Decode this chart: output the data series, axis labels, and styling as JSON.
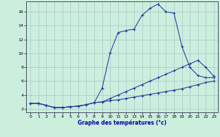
{
  "xlabel": "Graphe des températures (°c)",
  "line_color": "#2040a0",
  "bg_color": "#cceedd",
  "grid_color": "#aacccc",
  "xlim": [
    -0.5,
    23.5
  ],
  "ylim": [
    1.5,
    17.5
  ],
  "yticks": [
    2,
    4,
    6,
    8,
    10,
    12,
    14,
    16
  ],
  "xticks": [
    0,
    1,
    2,
    3,
    4,
    5,
    6,
    7,
    8,
    9,
    10,
    11,
    12,
    13,
    14,
    15,
    16,
    17,
    18,
    19,
    20,
    21,
    22,
    23
  ],
  "hours": [
    0,
    1,
    2,
    3,
    4,
    5,
    6,
    7,
    8,
    9,
    10,
    11,
    12,
    13,
    14,
    15,
    16,
    17,
    18,
    19,
    20,
    21,
    22,
    23
  ],
  "top_temps": [
    2.8,
    2.8,
    2.5,
    2.2,
    2.2,
    2.3,
    2.4,
    2.6,
    2.9,
    5.0,
    10.1,
    13.0,
    13.3,
    13.5,
    15.5,
    16.5,
    17.1,
    16.0,
    15.8,
    11.0,
    8.0,
    6.8,
    6.5,
    6.5
  ],
  "mid_temps": [
    2.8,
    2.8,
    2.5,
    2.2,
    2.2,
    2.3,
    2.4,
    2.6,
    2.9,
    3.0,
    3.5,
    4.0,
    4.5,
    5.0,
    5.5,
    6.0,
    6.5,
    7.0,
    7.5,
    8.0,
    8.5,
    9.0,
    8.0,
    6.7
  ],
  "bot_temps": [
    2.8,
    2.8,
    2.5,
    2.2,
    2.2,
    2.3,
    2.4,
    2.6,
    2.9,
    3.0,
    3.2,
    3.3,
    3.5,
    3.7,
    3.9,
    4.1,
    4.3,
    4.5,
    4.7,
    4.9,
    5.2,
    5.5,
    5.8,
    6.0
  ]
}
